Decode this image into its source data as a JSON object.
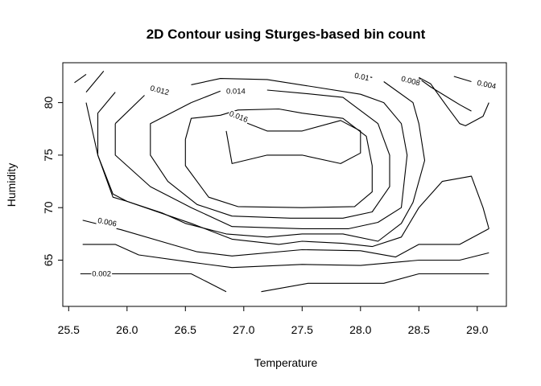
{
  "chart_data": {
    "type": "contour",
    "title": "2D Contour using Sturges-based bin count",
    "xlabel": "Temperature",
    "ylabel": "Humidity",
    "xlim": [
      25.45,
      29.25
    ],
    "ylim": [
      60.6,
      83.8
    ],
    "xticks": [
      "25.5",
      "26.0",
      "26.5",
      "27.0",
      "27.5",
      "28.0",
      "28.5",
      "29.0"
    ],
    "yticks": [
      "65",
      "70",
      "75",
      "80"
    ],
    "grid": false,
    "levels": [
      {
        "level": "0.002",
        "segments": [
          [
            [
              25.6,
              63.7
            ],
            [
              26.55,
              63.7
            ],
            [
              26.85,
              62.0
            ]
          ],
          [
            [
              27.15,
              62.0
            ],
            [
              27.55,
              62.8
            ],
            [
              28.2,
              62.8
            ],
            [
              28.5,
              63.7
            ],
            [
              29.1,
              63.7
            ]
          ]
        ],
        "label": {
          "text": "0.002",
          "x": 25.7,
          "y": 63.7,
          "rotate": 0
        }
      },
      {
        "level": "0.004",
        "segments": [
          [
            [
              25.62,
              66.5
            ],
            [
              25.9,
              66.5
            ],
            [
              26.1,
              65.5
            ],
            [
              26.55,
              64.8
            ],
            [
              26.9,
              64.3
            ],
            [
              27.5,
              64.6
            ],
            [
              28.0,
              64.5
            ],
            [
              28.5,
              65.0
            ],
            [
              28.85,
              65.0
            ],
            [
              29.1,
              65.7
            ]
          ],
          [
            [
              28.8,
              82.5
            ],
            [
              28.95,
              82.0
            ]
          ]
        ],
        "label": {
          "text": "0.004",
          "x": 29.0,
          "y": 81.9,
          "rotate": 12
        }
      },
      {
        "level": "0.006",
        "segments": [
          [
            [
              25.62,
              68.8
            ],
            [
              25.95,
              67.9
            ],
            [
              26.35,
              66.6
            ],
            [
              26.6,
              65.8
            ],
            [
              26.9,
              65.4
            ],
            [
              27.5,
              66.0
            ],
            [
              28.0,
              65.9
            ],
            [
              28.3,
              65.3
            ],
            [
              28.5,
              66.5
            ],
            [
              28.85,
              66.5
            ],
            [
              29.1,
              68.0
            ]
          ],
          [
            [
              28.5,
              82.3
            ],
            [
              28.6,
              81.5
            ],
            [
              28.85,
              79.8
            ],
            [
              28.95,
              79.2
            ]
          ]
        ],
        "label": {
          "text": "0.006",
          "x": 25.75,
          "y": 68.8,
          "rotate": 12
        }
      },
      {
        "level": "0.008",
        "segments": [
          [
            [
              25.65,
              81.0
            ],
            [
              25.8,
              83.0
            ]
          ],
          [
            [
              25.65,
              80.0
            ],
            [
              25.75,
              75.0
            ],
            [
              25.88,
              71.0
            ],
            [
              26.0,
              70.6
            ],
            [
              26.55,
              68.5
            ],
            [
              26.9,
              67.0
            ],
            [
              27.3,
              66.5
            ],
            [
              27.5,
              66.8
            ],
            [
              27.85,
              66.6
            ],
            [
              28.1,
              66.3
            ],
            [
              28.35,
              67.2
            ],
            [
              28.5,
              70.0
            ],
            [
              28.7,
              72.5
            ],
            [
              28.95,
              73.0
            ],
            [
              29.05,
              70.0
            ],
            [
              29.1,
              68.0
            ]
          ],
          [
            [
              29.1,
              80.0
            ],
            [
              29.05,
              78.7
            ],
            [
              28.9,
              77.8
            ],
            [
              28.85,
              78.0
            ],
            [
              28.75,
              79.5
            ],
            [
              28.6,
              81.8
            ],
            [
              28.5,
              82.4
            ]
          ]
        ],
        "label": {
          "text": "0.008",
          "x": 28.35,
          "y": 82.3,
          "rotate": 15
        }
      },
      {
        "level": "0.01",
        "segments": [
          [
            [
              25.55,
              81.9
            ],
            [
              25.65,
              82.7
            ]
          ],
          [
            [
              25.9,
              81.0
            ],
            [
              25.75,
              79.0
            ],
            [
              25.75,
              75.0
            ],
            [
              25.88,
              71.3
            ],
            [
              26.0,
              70.6
            ],
            [
              26.3,
              69.5
            ],
            [
              26.5,
              68.5
            ],
            [
              26.85,
              67.5
            ],
            [
              27.2,
              67.2
            ],
            [
              27.5,
              67.5
            ],
            [
              27.85,
              67.5
            ],
            [
              28.15,
              66.8
            ],
            [
              28.35,
              68.5
            ],
            [
              28.45,
              70.5
            ],
            [
              28.55,
              74.5
            ],
            [
              28.5,
              78.0
            ],
            [
              28.45,
              80.0
            ],
            [
              28.2,
              82.0
            ]
          ],
          [
            [
              28.1,
              82.4
            ],
            [
              27.95,
              82.7
            ]
          ]
        ],
        "label": {
          "text": "0.01",
          "x": 27.95,
          "y": 82.6,
          "rotate": 12
        }
      },
      {
        "level": "0.012",
        "segments": [
          [
            [
              25.9,
              78.0
            ],
            [
              25.9,
              75.0
            ],
            [
              26.2,
              72.0
            ],
            [
              26.55,
              70.0
            ],
            [
              26.9,
              68.2
            ],
            [
              27.5,
              68.0
            ],
            [
              27.9,
              68.0
            ],
            [
              28.15,
              68.6
            ],
            [
              28.35,
              70.0
            ],
            [
              28.4,
              75.0
            ],
            [
              28.35,
              78.0
            ],
            [
              28.2,
              80.0
            ],
            [
              28.0,
              80.8
            ],
            [
              27.6,
              81.5
            ],
            [
              27.2,
              82.2
            ],
            [
              26.8,
              82.3
            ],
            [
              26.55,
              81.7
            ]
          ],
          [
            [
              26.15,
              80.7
            ],
            [
              25.9,
              78.0
            ]
          ]
        ],
        "label": {
          "text": "0.012",
          "x": 26.2,
          "y": 81.4,
          "rotate": 15
        }
      },
      {
        "level": "0.014",
        "segments": [
          [
            [
              26.55,
              80.0
            ],
            [
              26.2,
              78.0
            ],
            [
              26.2,
              75.0
            ],
            [
              26.35,
              72.5
            ],
            [
              26.6,
              70.3
            ],
            [
              26.9,
              69.2
            ],
            [
              27.4,
              69.0
            ],
            [
              27.85,
              69.0
            ],
            [
              28.1,
              69.6
            ],
            [
              28.25,
              72.0
            ],
            [
              28.25,
              75.0
            ],
            [
              28.15,
              78.0
            ],
            [
              27.85,
              80.5
            ],
            [
              27.5,
              80.9
            ],
            [
              27.2,
              81.2
            ]
          ],
          [
            [
              26.8,
              81.1
            ],
            [
              26.55,
              80.0
            ]
          ]
        ],
        "label": {
          "text": "0.014",
          "x": 26.85,
          "y": 81.1,
          "rotate": 0
        }
      },
      {
        "level": "0.016",
        "segments": [
          [
            [
              26.5,
              76.5
            ],
            [
              26.5,
              74.0
            ],
            [
              26.7,
              71.0
            ],
            [
              26.95,
              70.1
            ],
            [
              27.5,
              70.0
            ],
            [
              27.95,
              70.1
            ],
            [
              28.1,
              71.5
            ],
            [
              28.1,
              74.0
            ],
            [
              28.05,
              76.8
            ],
            [
              27.85,
              78.5
            ],
            [
              27.5,
              79.0
            ],
            [
              27.3,
              79.4
            ],
            [
              26.95,
              79.3
            ],
            [
              26.8,
              78.8
            ],
            [
              26.55,
              78.5
            ],
            [
              26.5,
              76.5
            ]
          ]
        ],
        "label": null
      },
      {
        "level": "0.016",
        "segments": [
          [
            [
              26.97,
              78.3
            ],
            [
              27.2,
              77.3
            ],
            [
              27.5,
              77.3
            ],
            [
              27.83,
              78.3
            ],
            [
              28.0,
              77.3
            ],
            [
              28.0,
              75.2
            ],
            [
              27.83,
              74.2
            ],
            [
              27.5,
              75.0
            ],
            [
              27.2,
              75.0
            ],
            [
              26.9,
              74.2
            ],
            [
              26.85,
              77.3
            ]
          ]
        ],
        "label": {
          "text": "0.016",
          "x": 26.88,
          "y": 79.0,
          "rotate": 22
        }
      }
    ]
  }
}
